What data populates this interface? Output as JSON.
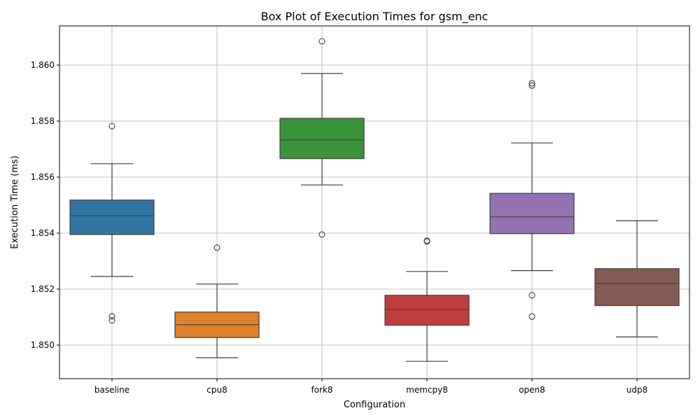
{
  "chart_data": {
    "type": "box",
    "title": "Box Plot of Execution Times for gsm_enc",
    "xlabel": "Configuration",
    "ylabel": "Execution Time (ms)",
    "ylim": [
      1.8488,
      1.8614
    ],
    "yticks": [
      1.85,
      1.852,
      1.854,
      1.856,
      1.858,
      1.86
    ],
    "ytick_labels": [
      "1.850",
      "1.852",
      "1.854",
      "1.856",
      "1.858",
      "1.860"
    ],
    "grid": true,
    "categories": [
      "baseline",
      "cpu8",
      "fork8",
      "memcpy8",
      "open8",
      "udp8"
    ],
    "boxes": [
      {
        "name": "baseline",
        "color": "#3274a1",
        "whislo": 1.85245,
        "q1": 1.85395,
        "median": 1.85462,
        "q3": 1.85518,
        "whishi": 1.85648,
        "fliers": [
          1.85782,
          1.85103,
          1.85088
        ]
      },
      {
        "name": "cpu8",
        "color": "#e1812c",
        "whislo": 1.84955,
        "q1": 1.85027,
        "median": 1.85073,
        "q3": 1.85118,
        "whishi": 1.85218,
        "fliers": [
          1.85348
        ]
      },
      {
        "name": "fork8",
        "color": "#3a923a",
        "whislo": 1.85572,
        "q1": 1.85666,
        "median": 1.85733,
        "q3": 1.8581,
        "whishi": 1.8597,
        "fliers": [
          1.86085,
          1.85395
        ]
      },
      {
        "name": "memcpy8",
        "color": "#c03d3e",
        "whislo": 1.84942,
        "q1": 1.85071,
        "median": 1.85127,
        "q3": 1.85178,
        "whishi": 1.85263,
        "fliers": [
          1.85373,
          1.8537
        ]
      },
      {
        "name": "open8",
        "color": "#9372b2",
        "whislo": 1.85266,
        "q1": 1.85398,
        "median": 1.85458,
        "q3": 1.85542,
        "whishi": 1.85722,
        "fliers": [
          1.85935,
          1.85927,
          1.85178,
          1.85102
        ]
      },
      {
        "name": "udp8",
        "color": "#845b53",
        "whislo": 1.85029,
        "q1": 1.85141,
        "median": 1.8522,
        "q3": 1.85273,
        "whishi": 1.85444,
        "fliers": []
      }
    ]
  }
}
